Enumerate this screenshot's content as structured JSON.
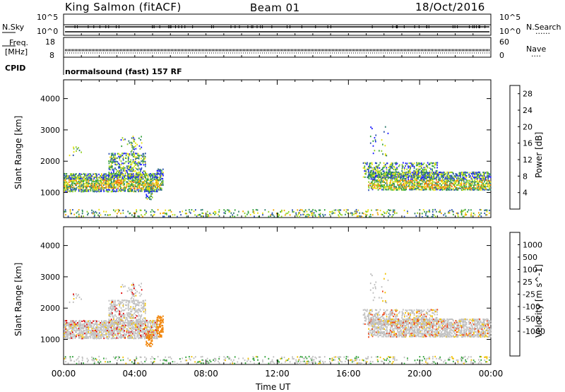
{
  "header": {
    "title": "King Salmon (fitACF)",
    "beam": "Beam 01",
    "date": "18/Oct/2016"
  },
  "params": {
    "nsky_label": "N.Sky",
    "nsearch_label": "N.Search",
    "freq_label_1": "Freq.",
    "freq_label_2": "[MHz]",
    "nave_label": "Nave",
    "cpid_label": "CPID",
    "cpid_value": "normalsound (fast) 157 RF",
    "noise_ticks": [
      "10^5",
      "10^0"
    ],
    "freq_ticks": [
      "18",
      "8"
    ],
    "nave_ticks": [
      "60",
      "0"
    ]
  },
  "colors": {
    "power": [
      "#1f1fff",
      "#2a4fb0",
      "#2f7d6e",
      "#33a23a",
      "#8fd020",
      "#e8e010",
      "#f0a800",
      "#f07000",
      "#f03010",
      "#e00000"
    ],
    "velocity": [
      "#1010ff",
      "#2a4fb0",
      "#2f7d6e",
      "#33a23a",
      "#bfbfbf",
      "#bfbfbf",
      "#f0c000",
      "#f08000",
      "#f04010",
      "#e00000"
    ]
  },
  "chart_data": [
    {
      "type": "heatmap",
      "name": "power",
      "xlabel": "",
      "ylabel": "Slant Range [km]",
      "xlim": [
        0,
        24
      ],
      "ylim": [
        200,
        4600
      ],
      "y_ticks": [
        1000,
        2000,
        3000,
        4000
      ],
      "colorbar_label": "Power [dB]",
      "colorbar_ticks": [
        "4",
        "8",
        "12",
        "16",
        "20",
        "24",
        "28"
      ],
      "colorbar_range": [
        0,
        30
      ]
    },
    {
      "type": "heatmap",
      "name": "velocity",
      "xlabel": "Time UT",
      "ylabel": "Slant Range [km]",
      "xlim": [
        0,
        24
      ],
      "ylim": [
        200,
        4600
      ],
      "x_ticks": [
        "00:00",
        "04:00",
        "08:00",
        "12:00",
        "16:00",
        "20:00",
        "00:00"
      ],
      "y_ticks": [
        1000,
        2000,
        3000,
        4000
      ],
      "colorbar_label": "Velocity [m s^-1]",
      "colorbar_ticks": [
        "1000",
        "500",
        "100",
        "25",
        "-25",
        "-100",
        "-500",
        "-1000"
      ]
    }
  ]
}
